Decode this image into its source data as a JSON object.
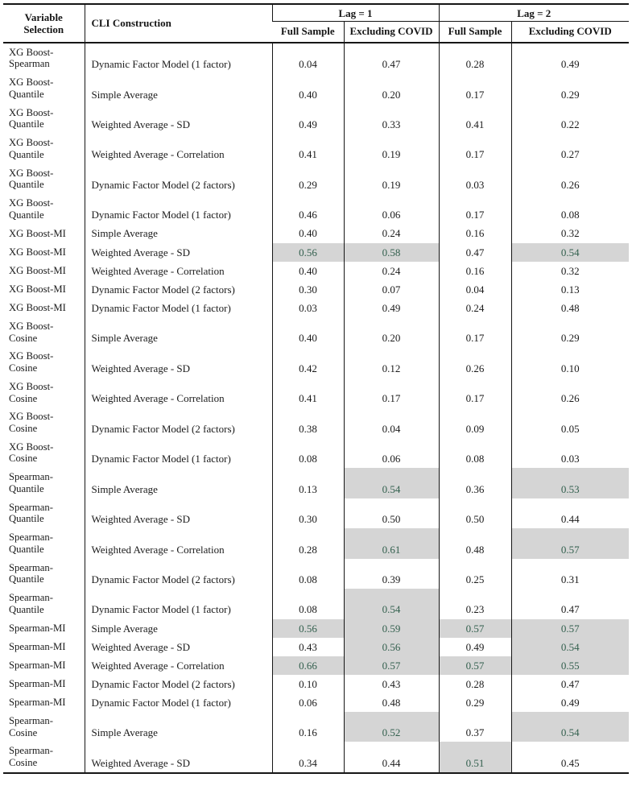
{
  "table": {
    "headers": {
      "variable_selection": "Variable Selection",
      "cli_construction": "CLI Construction",
      "lag1": "Lag = 1",
      "lag2": "Lag = 2",
      "full_sample_lag1": "Full Sample",
      "excluding_covid_lag1": "Excluding COVID",
      "full_sample_lag2": "Full Sample",
      "excluding_covid_lag2": "Excluding COVID"
    },
    "styles": {
      "highlight_background": "#d5d5d5",
      "highlight_text_color": "#33604e",
      "border_color": "#161616"
    },
    "rows": [
      {
        "variable": "XG Boost-Spearman",
        "cli": "Dynamic Factor Model (1 factor)",
        "values": [
          "0.04",
          "0.47",
          "0.28",
          "0.49"
        ],
        "highlight": [
          false,
          false,
          false,
          false
        ]
      },
      {
        "variable": "XG Boost-Quantile",
        "cli": "Simple Average",
        "values": [
          "0.40",
          "0.20",
          "0.17",
          "0.29"
        ],
        "highlight": [
          false,
          false,
          false,
          false
        ]
      },
      {
        "variable": "XG Boost-Quantile",
        "cli": "Weighted Average - SD",
        "values": [
          "0.49",
          "0.33",
          "0.41",
          "0.22"
        ],
        "highlight": [
          false,
          false,
          false,
          false
        ]
      },
      {
        "variable": "XG Boost-Quantile",
        "cli": "Weighted Average - Correlation",
        "values": [
          "0.41",
          "0.19",
          "0.17",
          "0.27"
        ],
        "highlight": [
          false,
          false,
          false,
          false
        ]
      },
      {
        "variable": "XG Boost-Quantile",
        "cli": "Dynamic Factor Model (2 factors)",
        "values": [
          "0.29",
          "0.19",
          "0.03",
          "0.26"
        ],
        "highlight": [
          false,
          false,
          false,
          false
        ]
      },
      {
        "variable": "XG Boost-Quantile",
        "cli": "Dynamic Factor Model (1 factor)",
        "values": [
          "0.46",
          "0.06",
          "0.17",
          "0.08"
        ],
        "highlight": [
          false,
          false,
          false,
          false
        ]
      },
      {
        "variable": "XG Boost-MI",
        "cli": "Simple Average",
        "values": [
          "0.40",
          "0.24",
          "0.16",
          "0.32"
        ],
        "highlight": [
          false,
          false,
          false,
          false
        ]
      },
      {
        "variable": "XG Boost-MI",
        "cli": "Weighted Average - SD",
        "values": [
          "0.56",
          "0.58",
          "0.47",
          "0.54"
        ],
        "highlight": [
          true,
          true,
          false,
          true
        ]
      },
      {
        "variable": "XG Boost-MI",
        "cli": "Weighted Average - Correlation",
        "values": [
          "0.40",
          "0.24",
          "0.16",
          "0.32"
        ],
        "highlight": [
          false,
          false,
          false,
          false
        ]
      },
      {
        "variable": "XG Boost-MI",
        "cli": "Dynamic Factor Model (2 factors)",
        "values": [
          "0.30",
          "0.07",
          "0.04",
          "0.13"
        ],
        "highlight": [
          false,
          false,
          false,
          false
        ]
      },
      {
        "variable": "XG Boost-MI",
        "cli": "Dynamic Factor Model (1 factor)",
        "values": [
          "0.03",
          "0.49",
          "0.24",
          "0.48"
        ],
        "highlight": [
          false,
          false,
          false,
          false
        ]
      },
      {
        "variable": "XG Boost-Cosine",
        "cli": "Simple Average",
        "values": [
          "0.40",
          "0.20",
          "0.17",
          "0.29"
        ],
        "highlight": [
          false,
          false,
          false,
          false
        ]
      },
      {
        "variable": "XG Boost-Cosine",
        "cli": "Weighted Average - SD",
        "values": [
          "0.42",
          "0.12",
          "0.26",
          "0.10"
        ],
        "highlight": [
          false,
          false,
          false,
          false
        ]
      },
      {
        "variable": "XG Boost-Cosine",
        "cli": "Weighted Average - Correlation",
        "values": [
          "0.41",
          "0.17",
          "0.17",
          "0.26"
        ],
        "highlight": [
          false,
          false,
          false,
          false
        ]
      },
      {
        "variable": "XG Boost-Cosine",
        "cli": "Dynamic Factor Model (2 factors)",
        "values": [
          "0.38",
          "0.04",
          "0.09",
          "0.05"
        ],
        "highlight": [
          false,
          false,
          false,
          false
        ]
      },
      {
        "variable": "XG Boost-Cosine",
        "cli": "Dynamic Factor Model (1 factor)",
        "values": [
          "0.08",
          "0.06",
          "0.08",
          "0.03"
        ],
        "highlight": [
          false,
          false,
          false,
          false
        ]
      },
      {
        "variable": "Spearman-Quantile",
        "cli": "Simple Average",
        "values": [
          "0.13",
          "0.54",
          "0.36",
          "0.53"
        ],
        "highlight": [
          false,
          true,
          false,
          true
        ]
      },
      {
        "variable": "Spearman-Quantile",
        "cli": "Weighted Average - SD",
        "values": [
          "0.30",
          "0.50",
          "0.50",
          "0.44"
        ],
        "highlight": [
          false,
          false,
          false,
          false
        ]
      },
      {
        "variable": "Spearman-Quantile",
        "cli": "Weighted Average - Correlation",
        "values": [
          "0.28",
          "0.61",
          "0.48",
          "0.57"
        ],
        "highlight": [
          false,
          true,
          false,
          true
        ]
      },
      {
        "variable": "Spearman-Quantile",
        "cli": "Dynamic Factor Model (2 factors)",
        "values": [
          "0.08",
          "0.39",
          "0.25",
          "0.31"
        ],
        "highlight": [
          false,
          false,
          false,
          false
        ]
      },
      {
        "variable": "Spearman-Quantile",
        "cli": "Dynamic Factor Model (1 factor)",
        "values": [
          "0.08",
          "0.54",
          "0.23",
          "0.47"
        ],
        "highlight": [
          false,
          true,
          false,
          false
        ]
      },
      {
        "variable": "Spearman-MI",
        "cli": "Simple Average",
        "values": [
          "0.56",
          "0.59",
          "0.57",
          "0.57"
        ],
        "highlight": [
          true,
          true,
          true,
          true
        ]
      },
      {
        "variable": "Spearman-MI",
        "cli": "Weighted Average - SD",
        "values": [
          "0.43",
          "0.56",
          "0.49",
          "0.54"
        ],
        "highlight": [
          false,
          true,
          false,
          true
        ]
      },
      {
        "variable": "Spearman-MI",
        "cli": "Weighted Average - Correlation",
        "values": [
          "0.66",
          "0.57",
          "0.57",
          "0.55"
        ],
        "highlight": [
          true,
          true,
          true,
          true
        ]
      },
      {
        "variable": "Spearman-MI",
        "cli": "Dynamic Factor Model (2 factors)",
        "values": [
          "0.10",
          "0.43",
          "0.28",
          "0.47"
        ],
        "highlight": [
          false,
          false,
          false,
          false
        ]
      },
      {
        "variable": "Spearman-MI",
        "cli": "Dynamic Factor Model (1 factor)",
        "values": [
          "0.06",
          "0.48",
          "0.29",
          "0.49"
        ],
        "highlight": [
          false,
          false,
          false,
          false
        ]
      },
      {
        "variable": "Spearman-Cosine",
        "cli": "Simple Average",
        "values": [
          "0.16",
          "0.52",
          "0.37",
          "0.54"
        ],
        "highlight": [
          false,
          true,
          false,
          true
        ]
      },
      {
        "variable": "Spearman-Cosine",
        "cli": "Weighted Average - SD",
        "values": [
          "0.34",
          "0.44",
          "0.51",
          "0.45"
        ],
        "highlight": [
          false,
          false,
          true,
          false
        ]
      }
    ]
  }
}
